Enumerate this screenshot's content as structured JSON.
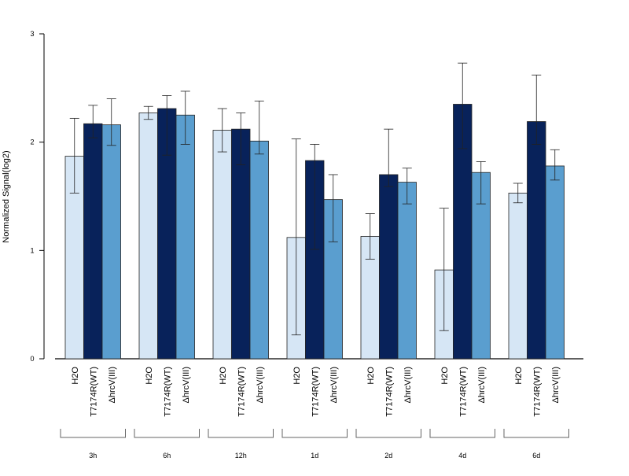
{
  "chart_data": {
    "type": "bar",
    "ylabel": "Normalized Signal(log2)",
    "ylim": [
      0,
      3
    ],
    "yticks": [
      0,
      1,
      2,
      3
    ],
    "grid": false,
    "groups": [
      "3h",
      "6h",
      "12h",
      "1d",
      "2d",
      "4d",
      "6d"
    ],
    "series_labels": [
      "H2O",
      "T7174R(WT)",
      "ΔhrcV(III)"
    ],
    "colors": [
      "#d6e6f5",
      "#08225a",
      "#5a9ecf"
    ],
    "series": [
      {
        "values": [
          1.87,
          2.27,
          2.11,
          1.12,
          1.13,
          0.82,
          1.53
        ],
        "err_low": [
          1.53,
          2.21,
          1.91,
          0.22,
          0.92,
          0.26,
          1.44
        ],
        "err_high": [
          2.22,
          2.33,
          2.31,
          2.03,
          1.34,
          1.39,
          1.62
        ]
      },
      {
        "values": [
          2.17,
          2.31,
          2.12,
          1.83,
          1.7,
          2.35,
          2.19
        ],
        "err_low": [
          2.04,
          1.88,
          1.79,
          1.01,
          1.59,
          1.94,
          1.98
        ],
        "err_high": [
          2.34,
          2.43,
          2.27,
          1.98,
          2.12,
          2.73,
          2.62
        ]
      },
      {
        "values": [
          2.16,
          2.25,
          2.01,
          1.47,
          1.63,
          1.72,
          1.78
        ],
        "err_low": [
          1.97,
          1.98,
          1.89,
          1.08,
          1.43,
          1.43,
          1.65
        ],
        "err_high": [
          2.4,
          2.47,
          2.38,
          1.7,
          1.76,
          1.82,
          1.93
        ]
      }
    ]
  }
}
